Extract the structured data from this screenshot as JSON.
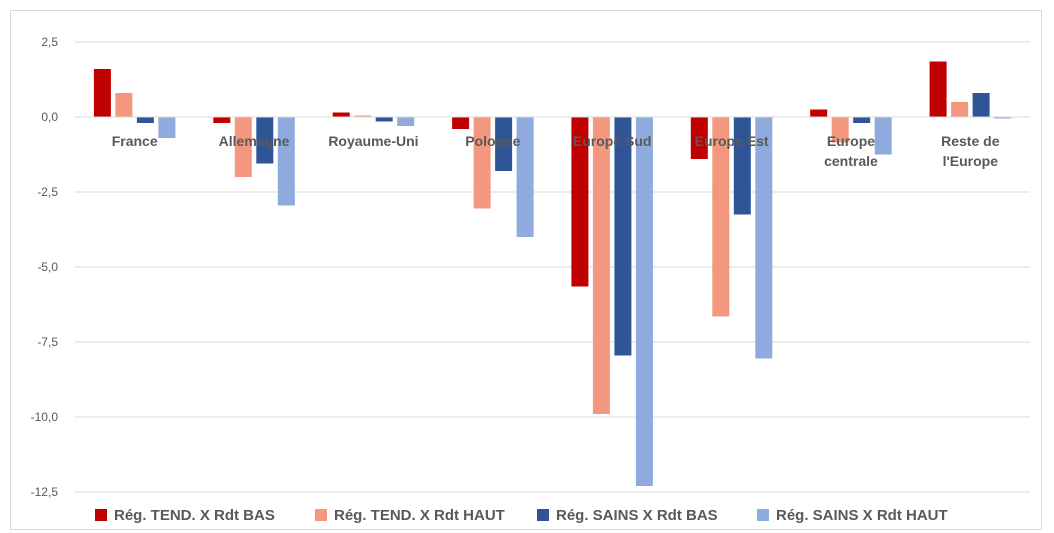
{
  "chart_data": {
    "type": "bar",
    "title": "",
    "xlabel": "",
    "ylabel": "",
    "categories": [
      "France",
      "Allemagne",
      "Royaume-Uni",
      "Pologne",
      "Europe Sud",
      "Europe Est",
      "Europe centrale",
      "Reste de l'Europe"
    ],
    "category_lines": [
      [
        "France"
      ],
      [
        "Allemagne"
      ],
      [
        "Royaume-Uni"
      ],
      [
        "Pologne"
      ],
      [
        "Europe Sud"
      ],
      [
        "Europe Est"
      ],
      [
        "Europe",
        "centrale"
      ],
      [
        "Reste de",
        "l'Europe"
      ]
    ],
    "ylim": [
      -12.5,
      2.5
    ],
    "yticks": [
      2.5,
      0,
      -2.5,
      -5,
      -7.5,
      -10,
      -12.5
    ],
    "ytick_labels": [
      "2,5",
      "0,0",
      "-2,5",
      "-5,0",
      "-7,5",
      "-10,0",
      "-12,5"
    ],
    "grid": true,
    "legend_position": "bottom",
    "series": [
      {
        "name": "Rég. TEND. X Rdt BAS",
        "color": "#C00000",
        "values": [
          1.6,
          -0.2,
          0.15,
          -0.4,
          -5.65,
          -1.4,
          0.25,
          1.85
        ]
      },
      {
        "name": "Rég. TEND. X Rdt HAUT",
        "color": "#F4977F",
        "values": [
          0.8,
          -2.0,
          0.05,
          -3.05,
          -9.9,
          -6.65,
          -0.85,
          0.5
        ]
      },
      {
        "name": "Rég. SAINS X Rdt BAS",
        "color": "#2F5597",
        "values": [
          -0.2,
          -1.55,
          -0.15,
          -1.8,
          -7.95,
          -3.25,
          -0.2,
          0.8
        ]
      },
      {
        "name": "Rég. SAINS X Rdt HAUT",
        "color": "#8FAADC",
        "values": [
          -0.7,
          -2.95,
          -0.3,
          -4.0,
          -12.3,
          -8.05,
          -1.25,
          -0.05
        ]
      }
    ]
  }
}
